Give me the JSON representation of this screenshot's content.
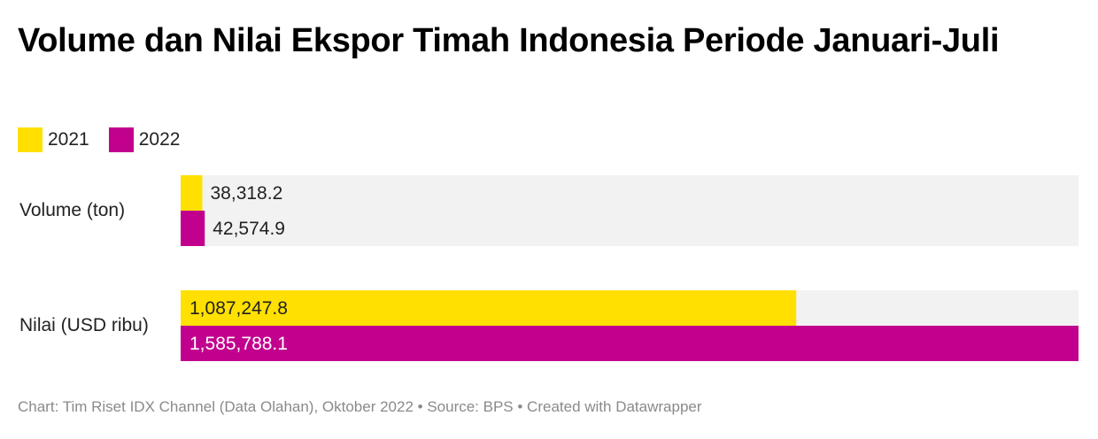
{
  "title": "Volume dan Nilai Ekspor Timah Indonesia Periode Januari-Juli",
  "legend": [
    {
      "label": "2021",
      "color": "#ffe000"
    },
    {
      "label": "2022",
      "color": "#c2008e"
    }
  ],
  "footer": "Chart: Tim Riset IDX Channel (Data Olahan), Oktober 2022 • Source: BPS • Created with Datawrapper",
  "chart_data": {
    "type": "bar",
    "orientation": "horizontal",
    "categories": [
      "Volume (ton)",
      "Nilai (USD ribu)"
    ],
    "series": [
      {
        "name": "2021",
        "color": "#ffe000",
        "values": [
          38318.2,
          1087247.8
        ],
        "labels": [
          "38,318.2",
          "1,087,247.8"
        ]
      },
      {
        "name": "2022",
        "color": "#c2008e",
        "values": [
          42574.9,
          1585788.1
        ],
        "labels": [
          "42,574.9",
          "1,585,788.1"
        ]
      }
    ],
    "xlim": [
      0,
      1585788.1
    ],
    "background_color": "#f2f2f2",
    "grid": false
  }
}
